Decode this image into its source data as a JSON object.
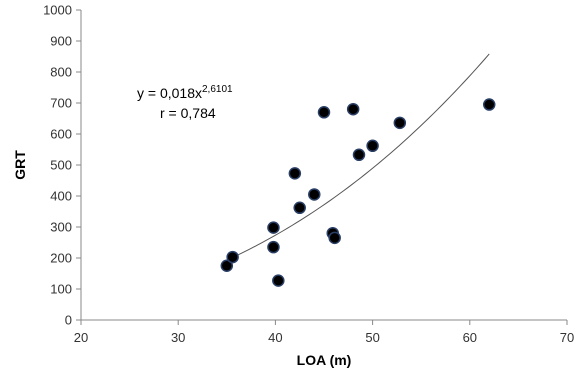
{
  "chart_data": {
    "type": "scatter",
    "xlabel": "LOA (m)",
    "ylabel": "GRT",
    "xlim": [
      20,
      70
    ],
    "ylim": [
      0,
      1000
    ],
    "xticks": [
      20,
      30,
      40,
      50,
      60,
      70
    ],
    "xtick_labels": [
      "20",
      "30",
      "40",
      "50",
      "60",
      "70"
    ],
    "yticks": [
      0,
      100,
      200,
      300,
      400,
      500,
      600,
      700,
      800,
      900,
      1000
    ],
    "ytick_labels": [
      "0",
      "100",
      "200",
      "300",
      "400",
      "500",
      "600",
      "700",
      "800",
      "900",
      "1000"
    ],
    "grid": false,
    "points": [
      {
        "x": 35.0,
        "y": 175
      },
      {
        "x": 35.6,
        "y": 203
      },
      {
        "x": 39.8,
        "y": 298
      },
      {
        "x": 39.8,
        "y": 235
      },
      {
        "x": 40.3,
        "y": 127
      },
      {
        "x": 42.0,
        "y": 473
      },
      {
        "x": 42.5,
        "y": 362
      },
      {
        "x": 44.0,
        "y": 405
      },
      {
        "x": 45.0,
        "y": 670
      },
      {
        "x": 45.9,
        "y": 280
      },
      {
        "x": 46.1,
        "y": 265
      },
      {
        "x": 48.0,
        "y": 680
      },
      {
        "x": 48.6,
        "y": 533
      },
      {
        "x": 50.0,
        "y": 562
      },
      {
        "x": 52.8,
        "y": 636
      },
      {
        "x": 62.0,
        "y": 695
      }
    ],
    "fit": {
      "type": "power",
      "a": 0.018,
      "b": 2.6101,
      "x_range": [
        35.5,
        62
      ],
      "equation_prefix": "y = 0,018x",
      "equation_exponent": "2,6101",
      "r_label": "r = 0,784"
    },
    "colors": {
      "marker_fill": "#000000",
      "marker_stroke": "#2a3f66",
      "fit_line": "#555555",
      "axis": "#888888"
    }
  }
}
